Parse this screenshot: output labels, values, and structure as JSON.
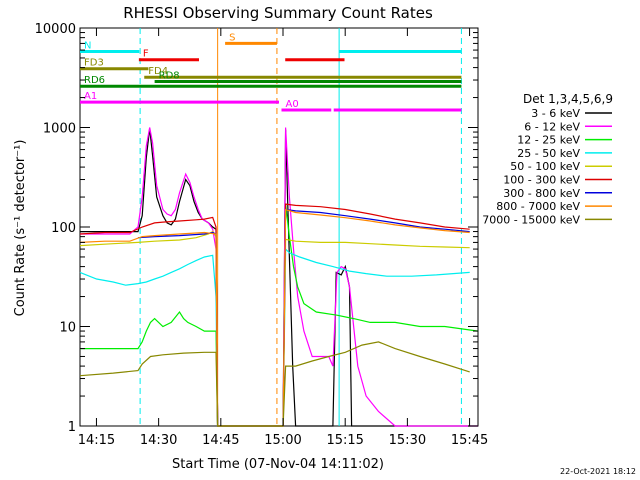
{
  "chart_data": {
    "type": "line",
    "title": "RHESSI Observing Summary Count Rates",
    "xlabel": "Start Time (07-Nov-04 14:11:02)",
    "ylabel": "Count Rate (s⁻¹ detector⁻¹)",
    "yscale": "log",
    "ylim": [
      1,
      10000
    ],
    "xlim_minutes_after_1411": [
      0,
      96
    ],
    "x_ticks": [
      "14:15",
      "14:30",
      "14:45",
      "15:00",
      "15:15",
      "15:30",
      "15:45"
    ],
    "y_ticks": [
      "1",
      "10",
      "100",
      "1000",
      "10000"
    ],
    "timestamp": "22-Oct-2021 18:12",
    "legend_title": "Det 1,3,4,5,6,9",
    "series": [
      {
        "name": "3 - 6 keV",
        "color": "#000000",
        "points": [
          [
            0,
            90
          ],
          [
            14,
            90
          ],
          [
            15,
            130
          ],
          [
            16,
            500
          ],
          [
            16.8,
            980
          ],
          [
            17.5,
            520
          ],
          [
            18.5,
            200
          ],
          [
            20,
            130
          ],
          [
            21,
            110
          ],
          [
            22,
            105
          ],
          [
            23,
            120
          ],
          [
            24,
            180
          ],
          [
            25.5,
            300
          ],
          [
            26.5,
            260
          ],
          [
            27.5,
            180
          ],
          [
            28.5,
            140
          ],
          [
            29.5,
            120
          ],
          [
            31,
            110
          ],
          [
            32,
            100
          ],
          [
            32.8,
            95
          ],
          [
            33.2,
            1
          ],
          [
            49,
            1
          ],
          [
            49.6,
            950
          ],
          [
            50.2,
            130
          ],
          [
            50.8,
            20
          ],
          [
            51.3,
            4
          ],
          [
            52,
            1
          ],
          [
            61,
            1
          ],
          [
            61.8,
            35
          ],
          [
            63,
            33
          ],
          [
            64,
            40
          ],
          [
            65,
            25
          ],
          [
            65.5,
            1
          ],
          [
            96,
            1
          ]
        ]
      },
      {
        "name": "6 - 12 keV",
        "color": "#ff00ff",
        "points": [
          [
            0,
            85
          ],
          [
            12,
            85
          ],
          [
            14,
            100
          ],
          [
            15,
            200
          ],
          [
            16,
            650
          ],
          [
            16.8,
            1000
          ],
          [
            17.5,
            700
          ],
          [
            18.5,
            260
          ],
          [
            20,
            150
          ],
          [
            21,
            135
          ],
          [
            22,
            130
          ],
          [
            23,
            150
          ],
          [
            24,
            220
          ],
          [
            25.5,
            340
          ],
          [
            26.5,
            280
          ],
          [
            27.5,
            200
          ],
          [
            28.5,
            150
          ],
          [
            29.5,
            120
          ],
          [
            31,
            110
          ],
          [
            32,
            95
          ],
          [
            32.8,
            60
          ],
          [
            33.2,
            1
          ],
          [
            49,
            1
          ],
          [
            49.6,
            1000
          ],
          [
            50.5,
            200
          ],
          [
            51.5,
            60
          ],
          [
            52.5,
            20
          ],
          [
            54,
            9
          ],
          [
            56,
            5
          ],
          [
            60,
            5
          ],
          [
            61,
            4
          ],
          [
            62,
            35
          ],
          [
            63,
            40
          ],
          [
            64,
            38
          ],
          [
            65,
            25
          ],
          [
            67,
            4
          ],
          [
            69,
            2
          ],
          [
            72,
            1.4
          ],
          [
            76,
            1
          ],
          [
            96,
            1
          ]
        ]
      },
      {
        "name": "12 - 25 keV",
        "color": "#00ee00",
        "points": [
          [
            0,
            6
          ],
          [
            5,
            6
          ],
          [
            14,
            6
          ],
          [
            15,
            7
          ],
          [
            16,
            9
          ],
          [
            17,
            11
          ],
          [
            18,
            12
          ],
          [
            20,
            10
          ],
          [
            22,
            11
          ],
          [
            24,
            14
          ],
          [
            25,
            12
          ],
          [
            26,
            11
          ],
          [
            28,
            10
          ],
          [
            30,
            9
          ],
          [
            32,
            9
          ],
          [
            32.8,
            9
          ],
          [
            33.2,
            1
          ],
          [
            49,
            1
          ],
          [
            49.6,
            170
          ],
          [
            50.5,
            80
          ],
          [
            51.5,
            40
          ],
          [
            52.5,
            25
          ],
          [
            54,
            17
          ],
          [
            57,
            14
          ],
          [
            62,
            13
          ],
          [
            66,
            12
          ],
          [
            70,
            11
          ],
          [
            76,
            11
          ],
          [
            82,
            10
          ],
          [
            88,
            10
          ],
          [
            96,
            9
          ]
        ]
      },
      {
        "name": "25 - 50 keV",
        "color": "#00eeee",
        "points": [
          [
            0,
            35
          ],
          [
            4,
            30
          ],
          [
            8,
            28
          ],
          [
            11,
            26
          ],
          [
            14,
            27
          ],
          [
            16,
            28
          ],
          [
            18,
            30
          ],
          [
            20,
            32
          ],
          [
            22,
            35
          ],
          [
            24,
            38
          ],
          [
            26,
            42
          ],
          [
            28,
            46
          ],
          [
            30,
            50
          ],
          [
            32,
            52
          ],
          [
            32.8,
            20
          ],
          [
            33.2,
            1
          ],
          [
            49,
            1
          ],
          [
            49.6,
            60
          ],
          [
            50.5,
            55
          ],
          [
            53,
            50
          ],
          [
            57,
            44
          ],
          [
            61,
            40
          ],
          [
            65,
            36
          ],
          [
            69,
            34
          ],
          [
            74,
            32
          ],
          [
            80,
            32
          ],
          [
            86,
            33
          ],
          [
            90,
            34
          ],
          [
            94,
            35
          ]
        ]
      },
      {
        "name": "50 - 100 keV",
        "color": "#cccc00",
        "points": [
          [
            0,
            65
          ],
          [
            8,
            68
          ],
          [
            14,
            70
          ],
          [
            18,
            72
          ],
          [
            24,
            74
          ],
          [
            28,
            78
          ],
          [
            31,
            85
          ],
          [
            32,
            90
          ],
          [
            32.8,
            80
          ],
          [
            33.2,
            1
          ],
          [
            49,
            1
          ],
          [
            49.6,
            75
          ],
          [
            52,
            72
          ],
          [
            58,
            70
          ],
          [
            64,
            70
          ],
          [
            70,
            68
          ],
          [
            76,
            66
          ],
          [
            82,
            64
          ],
          [
            88,
            63
          ],
          [
            94,
            62
          ]
        ]
      },
      {
        "name": "100 - 300 keV",
        "color": "#dd0000",
        "points": [
          [
            0,
            85
          ],
          [
            6,
            88
          ],
          [
            12,
            88
          ],
          [
            15,
            100
          ],
          [
            18,
            110
          ],
          [
            20,
            112
          ],
          [
            24,
            115
          ],
          [
            28,
            118
          ],
          [
            30,
            120
          ],
          [
            32,
            125
          ],
          [
            32.8,
            100
          ],
          [
            33.2,
            1
          ],
          [
            49,
            1
          ],
          [
            49.6,
            170
          ],
          [
            52,
            165
          ],
          [
            58,
            160
          ],
          [
            64,
            150
          ],
          [
            70,
            135
          ],
          [
            76,
            120
          ],
          [
            82,
            110
          ],
          [
            88,
            100
          ],
          [
            94,
            95
          ]
        ]
      },
      {
        "name": "300 - 800 keV",
        "color": "#0000dd",
        "points": [
          [
            14,
            78
          ],
          [
            18,
            80
          ],
          [
            24,
            82
          ],
          [
            30,
            85
          ],
          [
            32,
            88
          ],
          [
            32.8,
            85
          ],
          [
            33.2,
            1
          ],
          [
            49,
            1
          ],
          [
            49.6,
            150
          ],
          [
            52,
            145
          ],
          [
            58,
            140
          ],
          [
            64,
            130
          ],
          [
            70,
            120
          ],
          [
            76,
            110
          ],
          [
            82,
            100
          ],
          [
            88,
            95
          ],
          [
            94,
            90
          ]
        ]
      },
      {
        "name": "800 - 7000 keV",
        "color": "#ff8800",
        "points": [
          [
            0,
            70
          ],
          [
            6,
            72
          ],
          [
            12,
            72
          ],
          [
            15,
            80
          ],
          [
            18,
            82
          ],
          [
            24,
            85
          ],
          [
            30,
            88
          ],
          [
            32.8,
            85
          ],
          [
            33.2,
            1
          ],
          [
            49,
            1
          ],
          [
            49.6,
            150
          ],
          [
            52,
            140
          ],
          [
            58,
            132
          ],
          [
            64,
            124
          ],
          [
            70,
            115
          ],
          [
            76,
            105
          ],
          [
            82,
            98
          ],
          [
            88,
            92
          ],
          [
            94,
            88
          ]
        ]
      },
      {
        "name": "7000 - 15000 keV",
        "color": "#888800",
        "points": [
          [
            0,
            3.2
          ],
          [
            8,
            3.4
          ],
          [
            14,
            3.6
          ],
          [
            15,
            4.2
          ],
          [
            17,
            5
          ],
          [
            20,
            5.2
          ],
          [
            25,
            5.4
          ],
          [
            30,
            5.5
          ],
          [
            32.8,
            5.5
          ],
          [
            33.2,
            1
          ],
          [
            49,
            1
          ],
          [
            49.6,
            4
          ],
          [
            52,
            4
          ],
          [
            56,
            4.5
          ],
          [
            60,
            5
          ],
          [
            64,
            5.5
          ],
          [
            68,
            6.5
          ],
          [
            72,
            7
          ],
          [
            76,
            6
          ],
          [
            82,
            5
          ],
          [
            88,
            4.2
          ],
          [
            94,
            3.5
          ]
        ]
      }
    ],
    "flag_bars": [
      {
        "label": "N",
        "color": "#00eeee",
        "level": 5800,
        "segments": [
          [
            0,
            14.3
          ],
          [
            62.5,
            92
          ]
        ]
      },
      {
        "label": "F",
        "color": "#ee0000",
        "level": 4800,
        "segments": [
          [
            14.2,
            28.7
          ],
          [
            49.5,
            63.8
          ]
        ]
      },
      {
        "label": "S",
        "color": "#ff8800",
        "level": 7000,
        "segments": [
          [
            35,
            47.5
          ]
        ]
      },
      {
        "label": "FD3",
        "color": "#888800",
        "level": 3900,
        "segments": [
          [
            0,
            16.5
          ]
        ]
      },
      {
        "label": "FD4",
        "color": "#888800",
        "level": 3200,
        "segments": [
          [
            15.5,
            92
          ]
        ]
      },
      {
        "label": "RD6",
        "color": "#008800",
        "level": 2600,
        "segments": [
          [
            0,
            92
          ]
        ]
      },
      {
        "label": "RD8",
        "color": "#008800",
        "level": 2900,
        "segments": [
          [
            18,
            92
          ]
        ]
      },
      {
        "label": "A1",
        "color": "#ff00ff",
        "level": 1800,
        "segments": [
          [
            0,
            48
          ]
        ]
      },
      {
        "label": "A0",
        "color": "#ff00ff",
        "level": 1500,
        "segments": [
          [
            48.6,
            60.6
          ],
          [
            61.2,
            92
          ]
        ]
      }
    ],
    "vertical_lines": [
      {
        "x": 14.5,
        "color": "#00eeee",
        "style": "dashed"
      },
      {
        "x": 33.2,
        "color": "#ff8800",
        "style": "solid"
      },
      {
        "x": 47.5,
        "color": "#ff8800",
        "style": "dashed"
      },
      {
        "x": 62.5,
        "color": "#00eeee",
        "style": "solid"
      },
      {
        "x": 92,
        "color": "#00eeee",
        "style": "dashed"
      }
    ]
  }
}
